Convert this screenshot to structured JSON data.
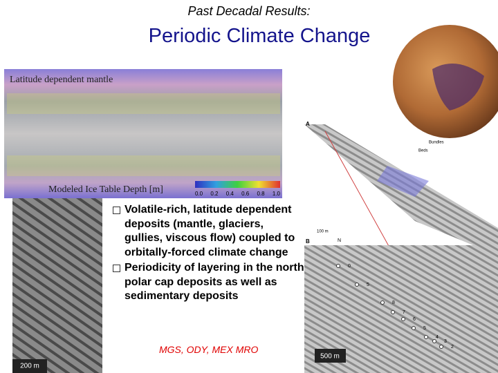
{
  "header": {
    "kicker": "Past Decadal Results:",
    "title": "Periodic Climate Change"
  },
  "map": {
    "label_top": "Latitude dependent mantle",
    "label_bottom": "Modeled Ice Table Depth [m]",
    "colorbar_ticks": [
      "0.0",
      "0.2",
      "0.4",
      "0.6",
      "0.8",
      "1.0"
    ]
  },
  "left_image": {
    "scale": "200 m"
  },
  "bullets": [
    "Volatile-rich, latitude dependent deposits (mantle, glaciers, gullies, viscous flow) coupled to orbitally-forced climate change",
    "Periodicity of layering in the north polar cap deposits as well as sedimentary deposits"
  ],
  "missions": "MGS, ODY, MEX MRO",
  "right_figure": {
    "panel_a": "A",
    "panel_b": "B",
    "bundles": "Bundles",
    "beds": "Beds",
    "scale_a": "100 m",
    "north": "N",
    "scale_b": "500 m",
    "layer_numbers": [
      "0",
      "5",
      "8",
      "7",
      "6",
      "5",
      "4",
      "3",
      "2"
    ]
  }
}
